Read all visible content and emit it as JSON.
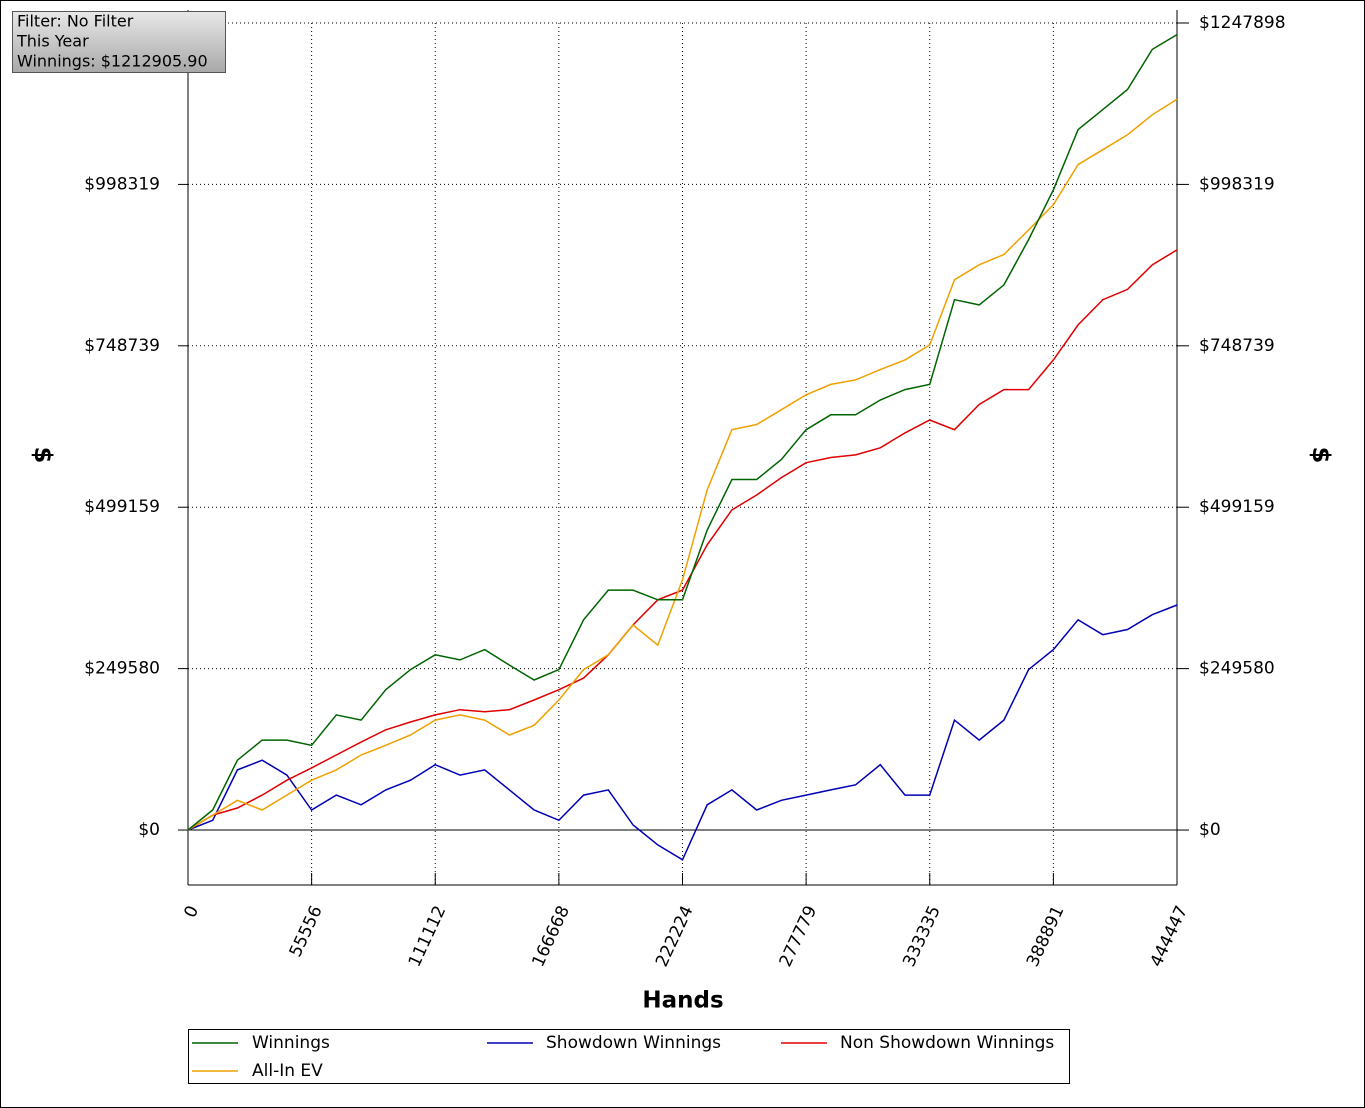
{
  "chart_data": {
    "type": "line",
    "x_label": "Hands",
    "y_label": "$",
    "x": [
      0,
      11111,
      22222,
      33333,
      44444,
      55556,
      66667,
      77778,
      88889,
      100000,
      111111,
      122222,
      133333,
      144444,
      155556,
      166667,
      177778,
      188889,
      200000,
      211111,
      222222,
      233333,
      244444,
      255556,
      266667,
      277778,
      288889,
      300000,
      311111,
      322222,
      333333,
      344444,
      355556,
      366667,
      377778,
      388889,
      400000,
      411111,
      422222,
      433333,
      444447
    ],
    "series": [
      {
        "name": "Winnings",
        "color": "#006400",
        "values": [
          0,
          31000,
          108000,
          139000,
          139000,
          131000,
          178000,
          170000,
          217000,
          248000,
          271000,
          263000,
          279000,
          255000,
          232000,
          248000,
          325000,
          371000,
          371000,
          356000,
          356000,
          464000,
          542000,
          542000,
          573000,
          619000,
          642000,
          642000,
          665000,
          681000,
          689000,
          820000,
          812000,
          843000,
          913000,
          990000,
          1083000,
          1114000,
          1145000,
          1207000,
          1230000
        ]
      },
      {
        "name": "Showdown Winnings",
        "color": "#0000b4",
        "values": [
          0,
          15000,
          93000,
          108000,
          85000,
          31000,
          54000,
          39000,
          62000,
          77000,
          101000,
          85000,
          93000,
          62000,
          31000,
          15000,
          54000,
          62000,
          8000,
          -23000,
          -46000,
          39000,
          62000,
          31000,
          46000,
          54000,
          62000,
          70000,
          101000,
          54000,
          54000,
          170000,
          139000,
          170000,
          248000,
          279000,
          325000,
          302000,
          310000,
          333000,
          348000
        ]
      },
      {
        "name": "Non Showdown Winnings",
        "color": "#e00000",
        "values": [
          0,
          23000,
          34000,
          54000,
          77000,
          96000,
          116000,
          136000,
          155000,
          167000,
          178000,
          186000,
          183000,
          186000,
          201000,
          217000,
          235000,
          271000,
          317000,
          356000,
          371000,
          441000,
          495000,
          518000,
          545000,
          568000,
          576000,
          580000,
          591000,
          614000,
          634000,
          619000,
          658000,
          681000,
          681000,
          727000,
          781000,
          820000,
          836000,
          874000,
          897000
        ]
      },
      {
        "name": "All-In EV",
        "color": "#f0a000",
        "values": [
          0,
          23000,
          46000,
          31000,
          54000,
          77000,
          93000,
          116000,
          131000,
          147000,
          170000,
          178000,
          170000,
          147000,
          162000,
          201000,
          248000,
          271000,
          317000,
          286000,
          387000,
          526000,
          619000,
          627000,
          650000,
          673000,
          689000,
          696000,
          712000,
          727000,
          750000,
          851000,
          874000,
          890000,
          928000,
          967000,
          1029000,
          1052000,
          1075000,
          1106000,
          1130000
        ]
      }
    ],
    "xlim": [
      0,
      444447
    ],
    "ylim": [
      -85000,
      1247898
    ],
    "xticks": [
      0,
      55556,
      111112,
      166668,
      222224,
      277779,
      333335,
      388891,
      444447
    ],
    "yticks": [
      {
        "value": 0,
        "label": "$0"
      },
      {
        "value": 249580,
        "label": "$249580"
      },
      {
        "value": 499159,
        "label": "$499159"
      },
      {
        "value": 748739,
        "label": "$748739"
      },
      {
        "value": 998319,
        "label": "$998319"
      },
      {
        "value": 1247898,
        "label": "$1247898"
      }
    ],
    "grid": true
  },
  "info": {
    "filter": "Filter: No Filter",
    "period": "This Year",
    "winnings": "Winnings: $1212905.90"
  }
}
